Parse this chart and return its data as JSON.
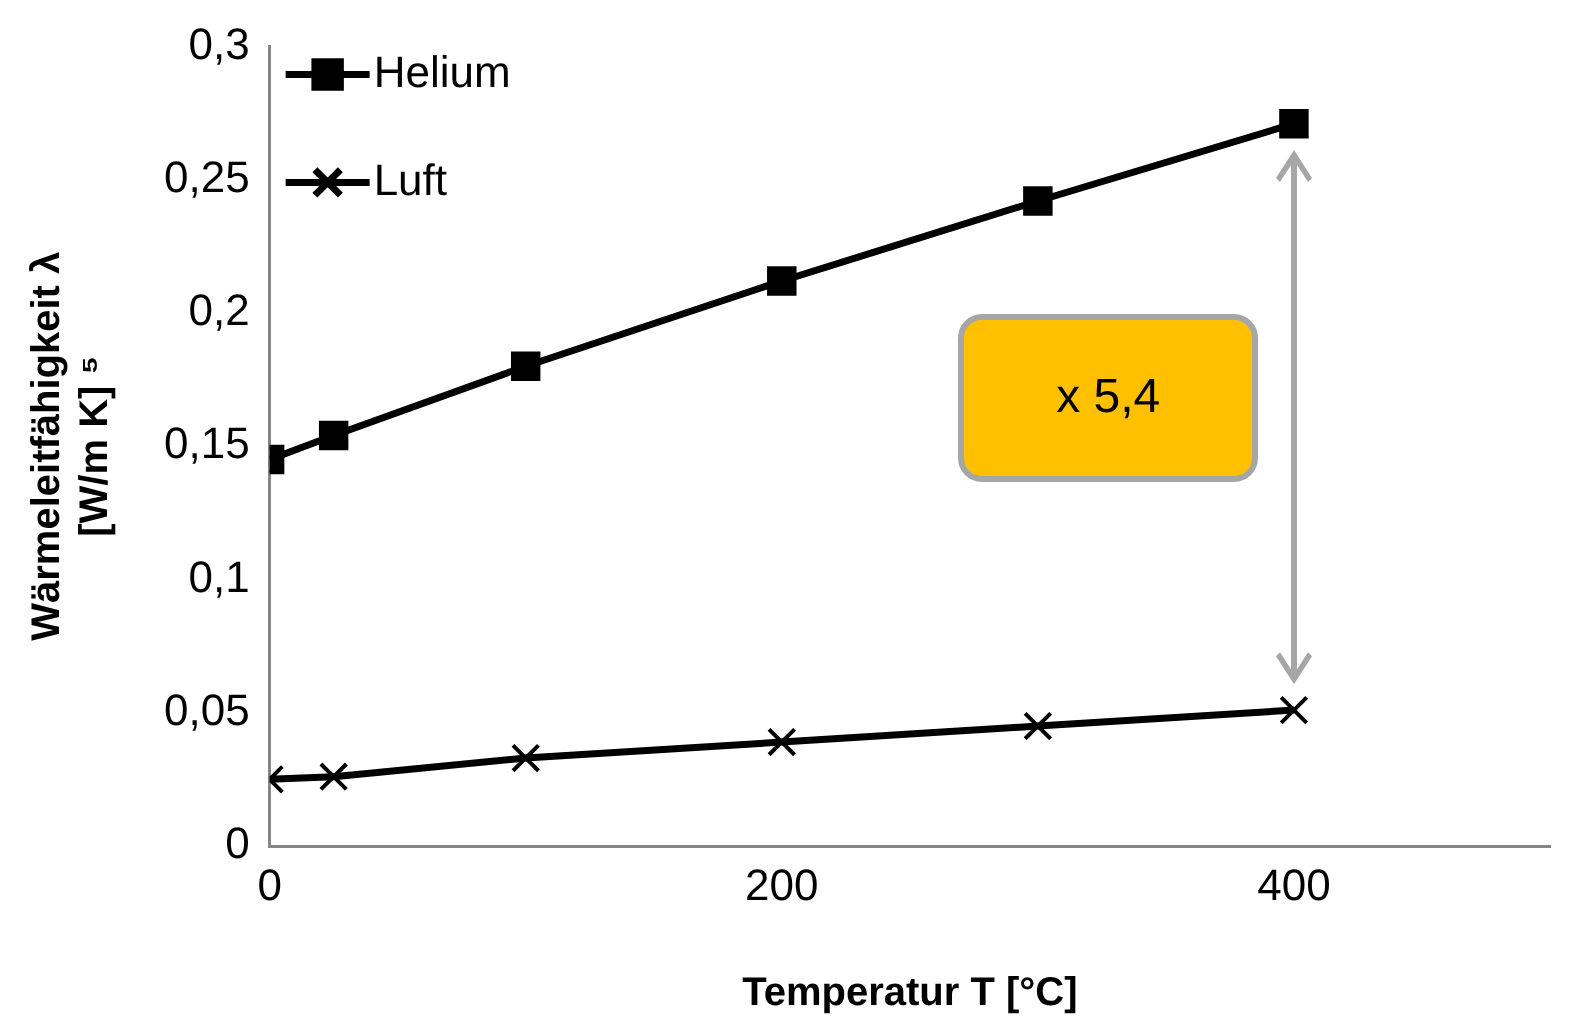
{
  "chart_data": {
    "type": "line",
    "xlabel": "Temperatur T [°C]",
    "ylabel": "Wärmeleitfähigkeit λ\n[W/m K] ⁵",
    "x": [
      0,
      25,
      100,
      200,
      300,
      400
    ],
    "series": [
      {
        "name": "Helium",
        "color": "#000000",
        "marker": "square",
        "values": [
          0.145,
          0.154,
          0.18,
          0.212,
          0.242,
          0.271
        ]
      },
      {
        "name": "Luft",
        "color": "#000000",
        "marker": "cross",
        "values": [
          0.025,
          0.026,
          0.033,
          0.039,
          0.045,
          0.051
        ]
      }
    ],
    "xlim": [
      0,
      500
    ],
    "xticks": [
      0,
      200,
      400
    ],
    "ylim": [
      0,
      0.3
    ],
    "yticks": [
      {
        "value": 0,
        "label": "0"
      },
      {
        "value": 0.05,
        "label": "0,05"
      },
      {
        "value": 0.1,
        "label": "0,1"
      },
      {
        "value": 0.15,
        "label": "0,15"
      },
      {
        "value": 0.2,
        "label": "0,2"
      },
      {
        "value": 0.25,
        "label": "0,25"
      },
      {
        "value": 0.3,
        "label": "0,3"
      }
    ],
    "grid": false,
    "legend": "top left",
    "line_style": "solid",
    "annotations": [
      "x 5,4"
    ]
  }
}
